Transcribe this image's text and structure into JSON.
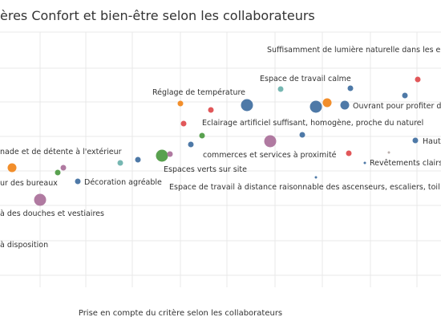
{
  "chart_data": {
    "type": "scatter",
    "title": "ères Confort et bien-être selon les collaborateurs",
    "xlabel": "Prise en compte du critère selon les collaborateurs",
    "ylabel": "",
    "grid": true,
    "colors": {
      "blue": "#4E79A7",
      "orange": "#F28E2B",
      "red": "#E15759",
      "teal": "#76B7B2",
      "green": "#59A14F",
      "purple": "#B07AA1",
      "gray": "#BAB0AC"
    },
    "points": [
      {
        "label": "Suffisamment de lumière naturelle dans les e",
        "color": "red",
        "size": 3.5
      },
      {
        "label": "",
        "color": "blue",
        "size": 3.5
      },
      {
        "label": "Espace de travail calme",
        "color": "teal",
        "size": 3.5
      },
      {
        "label": "",
        "color": "blue",
        "size": 3.5
      },
      {
        "label": "Réglage de température",
        "color": "orange",
        "size": 3.5
      },
      {
        "label": "",
        "color": "red",
        "size": 3.5
      },
      {
        "label": "",
        "color": "blue",
        "size": 7.5
      },
      {
        "label": "",
        "color": "blue",
        "size": 7.5
      },
      {
        "label": "",
        "color": "orange",
        "size": 5.5
      },
      {
        "label": "Ouvrant pour profiter d",
        "color": "blue",
        "size": 5.5
      },
      {
        "label": "Eclairage artificiel suffisant, homogène, proche du naturel",
        "color": "red",
        "size": 3.5
      },
      {
        "label": "",
        "color": "green",
        "size": 3.5
      },
      {
        "label": "",
        "color": "blue",
        "size": 3.5
      },
      {
        "label": "",
        "color": "blue",
        "size": 3.5
      },
      {
        "label": "",
        "color": "purple",
        "size": 7.5
      },
      {
        "label": "Haut",
        "color": "blue",
        "size": 3.5
      },
      {
        "label": "commerces et services à proximité",
        "color": "red",
        "size": 3.5
      },
      {
        "label": "",
        "color": "gray",
        "size": 1.5
      },
      {
        "label": "Revêtements clairs",
        "color": "blue",
        "size": 1.5
      },
      {
        "label": "nade et de détente à l'extérieur",
        "color": "blue",
        "size": 3.5
      },
      {
        "label": "",
        "color": "teal",
        "size": 3.5
      },
      {
        "label": "Espaces verts sur site",
        "color": "green",
        "size": 7.5
      },
      {
        "label": "",
        "color": "purple",
        "size": 3.5
      },
      {
        "label": "",
        "color": "orange",
        "size": 5.5
      },
      {
        "label": "",
        "color": "purple",
        "size": 3.5
      },
      {
        "label": "ur des bureaux",
        "color": "green",
        "size": 3.5
      },
      {
        "label": "Décoration agréable",
        "color": "blue",
        "size": 3.5
      },
      {
        "label": "Espace de travail à distance raisonnable des ascenseurs, escaliers, toil",
        "color": "blue",
        "size": 1.5
      },
      {
        "label": "",
        "color": "purple",
        "size": 7.5
      },
      {
        "label": "à des douches et vestiaires",
        "color": "",
        "size": 0
      },
      {
        "label": "à disposition",
        "color": "",
        "size": 0
      }
    ]
  }
}
